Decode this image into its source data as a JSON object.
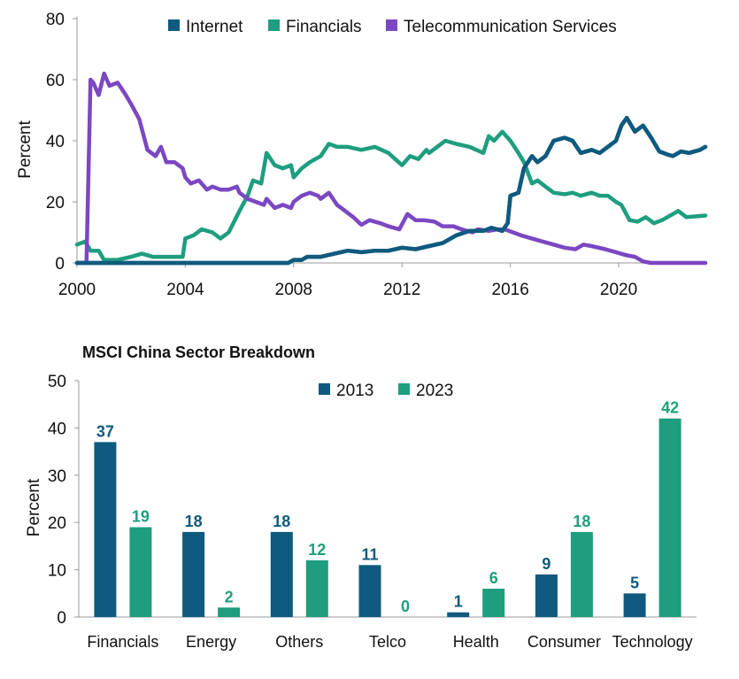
{
  "chart_data": [
    {
      "type": "line",
      "ylabel": "Percent",
      "ylim": [
        0,
        80
      ],
      "yticks": [
        "0",
        "20",
        "40",
        "60",
        "80"
      ],
      "xlim": [
        2000,
        2023.2
      ],
      "xticks": [
        "2000",
        "2004",
        "2008",
        "2012",
        "2016",
        "2020"
      ],
      "legend_position": "top",
      "grid": false,
      "series": [
        {
          "name": "Internet",
          "color": "#0f5a7e",
          "points": [
            [
              2000,
              0
            ],
            [
              2007.8,
              0
            ],
            [
              2008,
              1
            ],
            [
              2008.3,
              1
            ],
            [
              2008.5,
              2
            ],
            [
              2009,
              2
            ],
            [
              2009.5,
              3
            ],
            [
              2010,
              4
            ],
            [
              2010.5,
              3.5
            ],
            [
              2011,
              4
            ],
            [
              2011.5,
              4
            ],
            [
              2012,
              5
            ],
            [
              2012.5,
              4.5
            ],
            [
              2013,
              5.5
            ],
            [
              2013.5,
              6.5
            ],
            [
              2014,
              9
            ],
            [
              2014.5,
              10.5
            ],
            [
              2015,
              10.5
            ],
            [
              2015.3,
              11.5
            ],
            [
              2015.7,
              10.5
            ],
            [
              2015.9,
              13
            ],
            [
              2016,
              22
            ],
            [
              2016.3,
              23
            ],
            [
              2016.5,
              31
            ],
            [
              2016.8,
              35
            ],
            [
              2017,
              33
            ],
            [
              2017.3,
              35
            ],
            [
              2017.6,
              40
            ],
            [
              2018,
              41
            ],
            [
              2018.3,
              40
            ],
            [
              2018.6,
              36
            ],
            [
              2019,
              37
            ],
            [
              2019.3,
              36
            ],
            [
              2019.6,
              38
            ],
            [
              2019.9,
              40
            ],
            [
              2020.1,
              45
            ],
            [
              2020.3,
              47.5
            ],
            [
              2020.6,
              43
            ],
            [
              2020.9,
              45
            ],
            [
              2021.2,
              41
            ],
            [
              2021.5,
              36.5
            ],
            [
              2021.8,
              35.5
            ],
            [
              2022,
              35
            ],
            [
              2022.3,
              36.5
            ],
            [
              2022.6,
              36
            ],
            [
              2023,
              37
            ],
            [
              2023.2,
              38
            ]
          ]
        },
        {
          "name": "Financials",
          "color": "#1e9e7e",
          "points": [
            [
              2000,
              6
            ],
            [
              2000.3,
              7
            ],
            [
              2000.5,
              4
            ],
            [
              2000.8,
              4
            ],
            [
              2001,
              1
            ],
            [
              2001.5,
              1
            ],
            [
              2002,
              2
            ],
            [
              2002.4,
              3
            ],
            [
              2002.8,
              2
            ],
            [
              2003.5,
              2
            ],
            [
              2003.9,
              2
            ],
            [
              2004,
              8
            ],
            [
              2004.3,
              9
            ],
            [
              2004.6,
              11
            ],
            [
              2005,
              10
            ],
            [
              2005.3,
              8
            ],
            [
              2005.6,
              10
            ],
            [
              2006,
              17
            ],
            [
              2006.3,
              22
            ],
            [
              2006.5,
              27
            ],
            [
              2006.8,
              26
            ],
            [
              2007,
              36
            ],
            [
              2007.3,
              32
            ],
            [
              2007.6,
              31
            ],
            [
              2007.9,
              32
            ],
            [
              2008,
              28
            ],
            [
              2008.3,
              31
            ],
            [
              2008.6,
              33
            ],
            [
              2008.8,
              34
            ],
            [
              2009,
              35
            ],
            [
              2009.3,
              39
            ],
            [
              2009.6,
              38
            ],
            [
              2010,
              38
            ],
            [
              2010.5,
              37
            ],
            [
              2011,
              38
            ],
            [
              2011.5,
              36
            ],
            [
              2012,
              32
            ],
            [
              2012.3,
              35
            ],
            [
              2012.6,
              34
            ],
            [
              2012.9,
              37
            ],
            [
              2013,
              36
            ],
            [
              2013.3,
              38
            ],
            [
              2013.6,
              40
            ],
            [
              2014,
              39
            ],
            [
              2014.5,
              38
            ],
            [
              2015,
              36
            ],
            [
              2015.2,
              41.5
            ],
            [
              2015.4,
              40
            ],
            [
              2015.7,
              43
            ],
            [
              2016,
              40
            ],
            [
              2016.3,
              36
            ],
            [
              2016.5,
              33
            ],
            [
              2016.8,
              26
            ],
            [
              2017,
              27
            ],
            [
              2017.3,
              25
            ],
            [
              2017.6,
              23
            ],
            [
              2018,
              22.5
            ],
            [
              2018.3,
              23
            ],
            [
              2018.6,
              22
            ],
            [
              2019,
              23
            ],
            [
              2019.3,
              22
            ],
            [
              2019.6,
              22
            ],
            [
              2019.9,
              20
            ],
            [
              2020.1,
              19
            ],
            [
              2020.4,
              14
            ],
            [
              2020.7,
              13.5
            ],
            [
              2021,
              15
            ],
            [
              2021.3,
              13
            ],
            [
              2021.6,
              14
            ],
            [
              2022,
              16
            ],
            [
              2022.2,
              17
            ],
            [
              2022.5,
              15
            ],
            [
              2023.2,
              15.5
            ]
          ]
        },
        {
          "name": "Telecommunication Services",
          "color": "#7b47c2",
          "points": [
            [
              2000,
              0
            ],
            [
              2000.35,
              0
            ],
            [
              2000.5,
              60
            ],
            [
              2000.6,
              59
            ],
            [
              2000.8,
              55
            ],
            [
              2001,
              62
            ],
            [
              2001.2,
              58
            ],
            [
              2001.5,
              59
            ],
            [
              2001.8,
              55
            ],
            [
              2002,
              52
            ],
            [
              2002.3,
              47
            ],
            [
              2002.6,
              37
            ],
            [
              2002.9,
              35
            ],
            [
              2003.1,
              38
            ],
            [
              2003.3,
              33
            ],
            [
              2003.6,
              33
            ],
            [
              2003.9,
              31
            ],
            [
              2004,
              28
            ],
            [
              2004.2,
              26
            ],
            [
              2004.5,
              27
            ],
            [
              2004.8,
              24
            ],
            [
              2005,
              25
            ],
            [
              2005.3,
              24
            ],
            [
              2005.6,
              24
            ],
            [
              2005.9,
              25
            ],
            [
              2006,
              23
            ],
            [
              2006.3,
              21
            ],
            [
              2006.6,
              20
            ],
            [
              2006.9,
              19
            ],
            [
              2007,
              21
            ],
            [
              2007.3,
              18
            ],
            [
              2007.6,
              19
            ],
            [
              2007.9,
              18
            ],
            [
              2008,
              20
            ],
            [
              2008.3,
              22
            ],
            [
              2008.6,
              23
            ],
            [
              2008.9,
              22
            ],
            [
              2009,
              21
            ],
            [
              2009.3,
              23
            ],
            [
              2009.6,
              19
            ],
            [
              2009.9,
              17
            ],
            [
              2010.2,
              15
            ],
            [
              2010.5,
              12.5
            ],
            [
              2010.8,
              14
            ],
            [
              2011.2,
              13
            ],
            [
              2011.5,
              12
            ],
            [
              2011.9,
              11
            ],
            [
              2012.2,
              16
            ],
            [
              2012.5,
              14
            ],
            [
              2012.8,
              14
            ],
            [
              2013.2,
              13.5
            ],
            [
              2013.5,
              12
            ],
            [
              2013.9,
              12
            ],
            [
              2014.2,
              11
            ],
            [
              2014.6,
              10
            ],
            [
              2014.8,
              11
            ],
            [
              2015.2,
              10.5
            ],
            [
              2015.5,
              11
            ],
            [
              2015.8,
              11
            ],
            [
              2016.1,
              10
            ],
            [
              2016.4,
              9
            ],
            [
              2016.8,
              8
            ],
            [
              2017.2,
              7
            ],
            [
              2017.6,
              6
            ],
            [
              2018,
              5
            ],
            [
              2018.4,
              4.5
            ],
            [
              2018.7,
              6
            ],
            [
              2019,
              5.5
            ],
            [
              2019.5,
              4.5
            ],
            [
              2019.9,
              3.5
            ],
            [
              2020.3,
              2.5
            ],
            [
              2020.6,
              2
            ],
            [
              2020.9,
              0.5
            ],
            [
              2021.2,
              0
            ],
            [
              2023.2,
              0
            ]
          ]
        }
      ]
    },
    {
      "type": "bar",
      "title": "MSCI China Sector Breakdown",
      "ylabel": "Percent",
      "ylim": [
        0,
        50
      ],
      "yticks": [
        "0",
        "10",
        "20",
        "30",
        "40",
        "50"
      ],
      "legend_position": "top",
      "grid": false,
      "categories": [
        "Financials",
        "Energy",
        "Others",
        "Telco",
        "Health",
        "Consumer",
        "Technology"
      ],
      "series": [
        {
          "name": "2013",
          "color": "#0f5a7e",
          "values": [
            37,
            18,
            18,
            11,
            1,
            9,
            5
          ]
        },
        {
          "name": "2023",
          "color": "#1e9e7e",
          "values": [
            19,
            2,
            12,
            0,
            6,
            18,
            42
          ]
        }
      ]
    }
  ]
}
